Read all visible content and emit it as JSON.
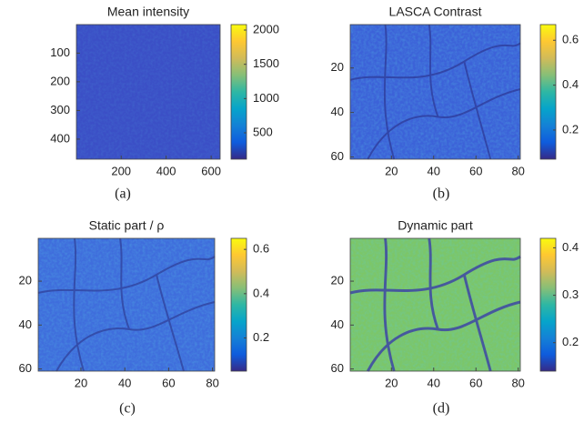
{
  "chart_data": [
    {
      "type": "heatmap",
      "title": "Mean intensity",
      "caption": "(a)",
      "colormap": "parula",
      "xlim": [
        1,
        640
      ],
      "xticks": [
        200,
        400,
        600
      ],
      "ylim": [
        470,
        0.5
      ],
      "yticks": [
        100,
        200,
        300,
        400
      ],
      "clim": [
        115,
        2080
      ],
      "cticks": [
        500,
        1000,
        1500,
        2000
      ]
    },
    {
      "type": "heatmap",
      "title": "LASCA Contrast",
      "caption": "(b)",
      "colormap": "parula",
      "xlim": [
        0.5,
        81
      ],
      "xticks": [
        20,
        40,
        60,
        80
      ],
      "ylim": [
        61,
        0.5
      ],
      "yticks": [
        20,
        40,
        60
      ],
      "clim": [
        0.07,
        0.67
      ],
      "cticks": [
        0.2,
        0.4,
        0.6
      ]
    },
    {
      "type": "heatmap",
      "title": "Static part / ρ",
      "caption": "(c)",
      "colormap": "parula",
      "xlim": [
        0.5,
        81
      ],
      "xticks": [
        20,
        40,
        60,
        80
      ],
      "ylim": [
        61,
        0.5
      ],
      "yticks": [
        20,
        40,
        60
      ],
      "clim": [
        0.05,
        0.65
      ],
      "cticks": [
        0.2,
        0.4,
        0.6
      ]
    },
    {
      "type": "heatmap",
      "title": "Dynamic part",
      "caption": "(d)",
      "colormap": "parula",
      "xlim": [
        0.5,
        81
      ],
      "xticks": [
        20,
        40,
        60,
        80
      ],
      "ylim": [
        61,
        0.5
      ],
      "yticks": [
        20,
        40,
        60
      ],
      "clim": [
        0.14,
        0.42
      ],
      "cticks": [
        0.2,
        0.3,
        0.4
      ]
    }
  ]
}
